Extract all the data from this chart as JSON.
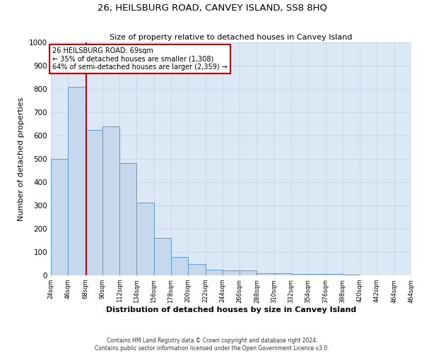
{
  "title": "26, HEILSBURG ROAD, CANVEY ISLAND, SS8 8HQ",
  "subtitle": "Size of property relative to detached houses in Canvey Island",
  "xlabel": "Distribution of detached houses by size in Canvey Island",
  "ylabel": "Number of detached properties",
  "bin_labels": [
    "24sqm",
    "46sqm",
    "68sqm",
    "90sqm",
    "112sqm",
    "134sqm",
    "156sqm",
    "178sqm",
    "200sqm",
    "222sqm",
    "244sqm",
    "266sqm",
    "288sqm",
    "310sqm",
    "332sqm",
    "354sqm",
    "376sqm",
    "398sqm",
    "420sqm",
    "442sqm",
    "464sqm"
  ],
  "bar_heights": [
    500,
    810,
    625,
    638,
    483,
    312,
    162,
    80,
    47,
    25,
    20,
    20,
    10,
    8,
    7,
    5,
    5,
    3,
    1,
    0
  ],
  "bar_color": "#c5d8ed",
  "bar_edge_color": "#5b9bd5",
  "bin_edges": [
    24,
    46,
    68,
    90,
    112,
    134,
    156,
    178,
    200,
    222,
    244,
    266,
    288,
    310,
    332,
    354,
    376,
    398,
    420,
    442,
    464
  ],
  "property_size": 69,
  "property_line_color": "#cc0000",
  "annotation_title": "26 HEILSBURG ROAD: 69sqm",
  "annotation_line1": "← 35% of detached houses are smaller (1,308)",
  "annotation_line2": "64% of semi-detached houses are larger (2,359) →",
  "annotation_box_color": "#cc0000",
  "ylim": [
    0,
    1000
  ],
  "yticks": [
    0,
    100,
    200,
    300,
    400,
    500,
    600,
    700,
    800,
    900,
    1000
  ],
  "grid_color": "#c8d8e8",
  "background_color": "#dce8f5",
  "footer_line1": "Contains HM Land Registry data © Crown copyright and database right 2024.",
  "footer_line2": "Contains public sector information licensed under the Open Government Licence v3.0."
}
